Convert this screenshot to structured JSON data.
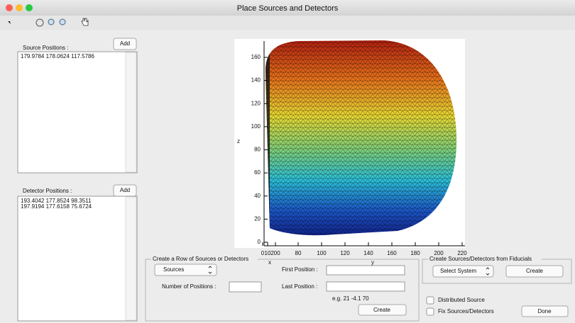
{
  "window": {
    "title": "Place Sources and Detectors"
  },
  "sources": {
    "label": "Source Positions :",
    "add": "Add",
    "items": [
      "179.9784 178.0624 117.5786"
    ]
  },
  "detectors": {
    "label": "Detector Positions :",
    "add": "Add",
    "items": [
      "193.4042 177.8524 98.3511",
      "197.9194 177.6158 75.6724"
    ]
  },
  "plot": {
    "z_label": "z",
    "x_label": "x",
    "y_label": "y",
    "z_ticks": [
      0,
      20,
      40,
      60,
      80,
      100,
      120,
      140,
      160
    ],
    "x_ticks": [
      0,
      10,
      200
    ],
    "y_ticks": [
      80,
      100,
      120,
      140,
      160,
      180,
      200,
      220
    ]
  },
  "row_panel": {
    "title": "Create a Row of Sources or Detectors",
    "type_popup": "Sources",
    "number_label": "Number of Positions :",
    "first_label": "First Position :",
    "last_label": "Last Position :",
    "hint": "e.g. 21 -4.1 70",
    "create": "Create"
  },
  "fiducials_panel": {
    "title": "Create Sources/Detectors from Fiducials",
    "system_popup": "Select System",
    "create": "Create"
  },
  "options": {
    "distributed": "Distributed Source",
    "fix": "Fix Sources/Detectors"
  },
  "done": "Done"
}
